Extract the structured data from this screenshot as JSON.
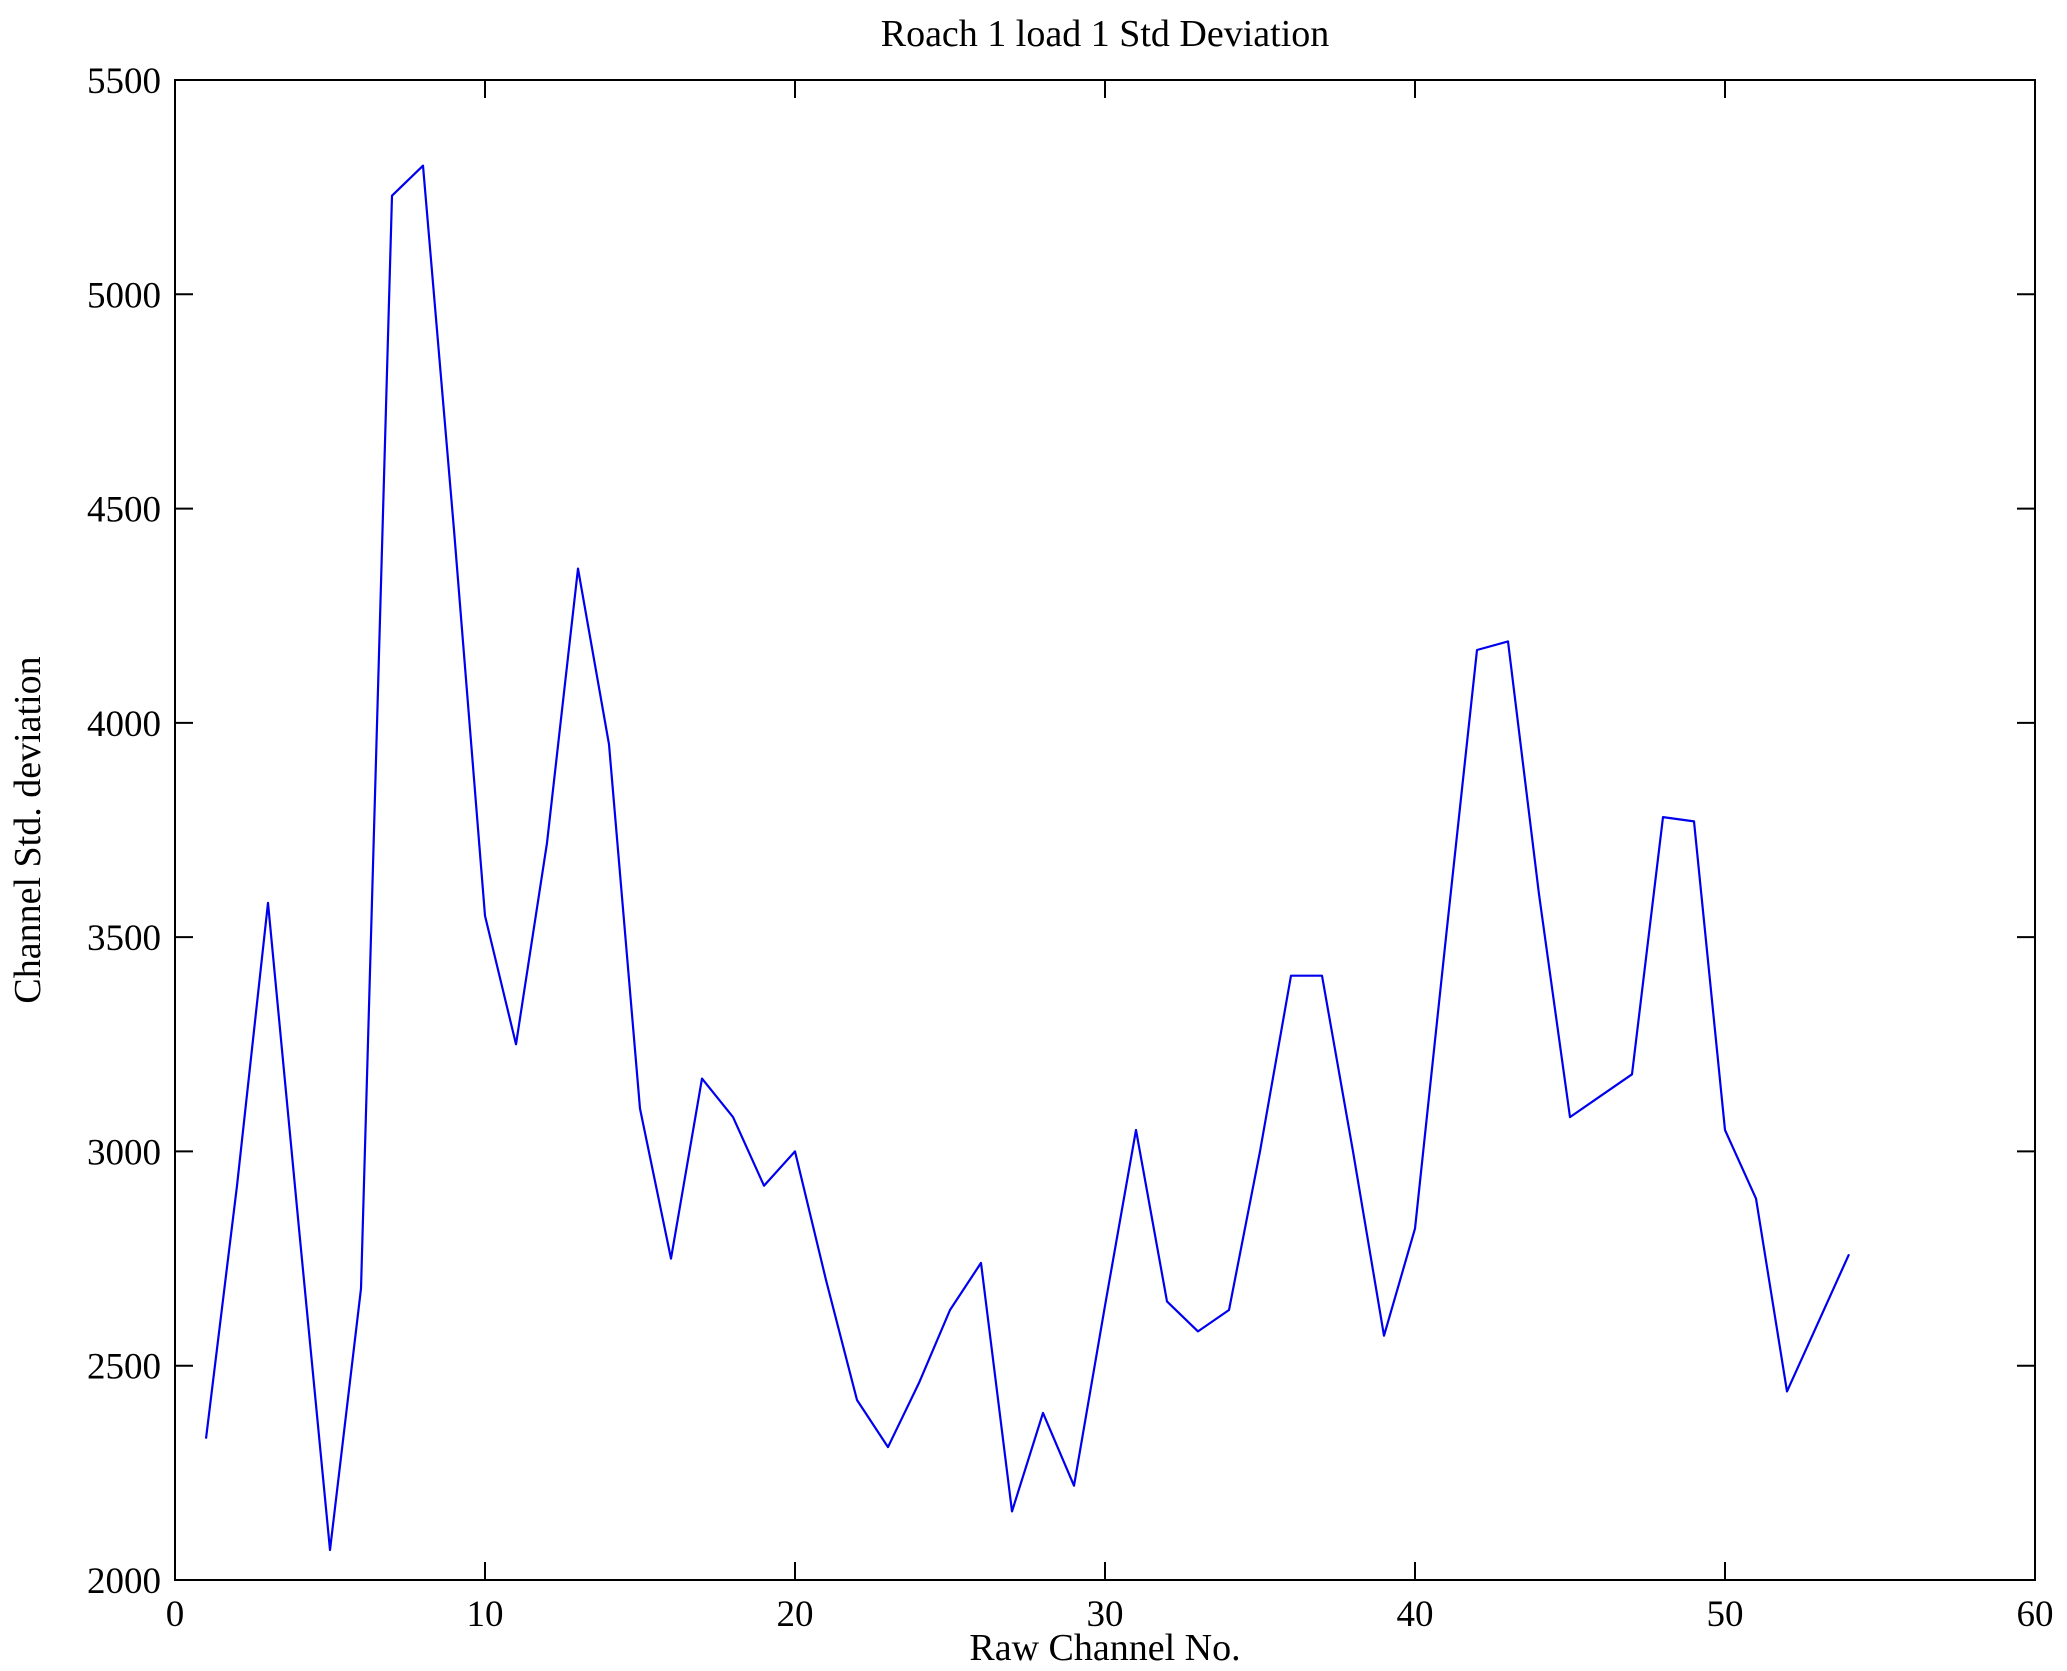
{
  "chart_data": {
    "type": "line",
    "title": "Roach 1 load 1 Std Deviation",
    "xlabel": "Raw Channel No.",
    "ylabel": "Channel Std. deviation",
    "xlim": [
      0,
      60
    ],
    "ylim": [
      2000,
      5500
    ],
    "xticks": [
      0,
      10,
      20,
      30,
      40,
      50,
      60
    ],
    "yticks": [
      2000,
      2500,
      3000,
      3500,
      4000,
      4500,
      5000,
      5500
    ],
    "grid": false,
    "legend": "none",
    "line_color": "#0000ee",
    "background_color": "#ffffff",
    "x": [
      1,
      2,
      3,
      4,
      5,
      6,
      7,
      8,
      9,
      10,
      11,
      12,
      13,
      14,
      15,
      16,
      17,
      18,
      19,
      20,
      21,
      22,
      23,
      24,
      25,
      26,
      27,
      28,
      29,
      30,
      31,
      32,
      33,
      34,
      35,
      36,
      37,
      38,
      39,
      40,
      41,
      42,
      43,
      44,
      45,
      46,
      47,
      48,
      49,
      50,
      51,
      52,
      53,
      54
    ],
    "y": [
      2330,
      2920,
      3580,
      2820,
      2070,
      2680,
      5230,
      5300,
      4450,
      3550,
      3250,
      3720,
      4360,
      3950,
      3100,
      2750,
      3170,
      3080,
      2920,
      3000,
      2700,
      2420,
      2310,
      2460,
      2630,
      2740,
      2160,
      2390,
      2220,
      2640,
      3050,
      2650,
      2580,
      2630,
      3000,
      3410,
      3410,
      3000,
      2570,
      2820,
      3500,
      4170,
      4190,
      3600,
      3080,
      3130,
      3180,
      3780,
      3770,
      3050,
      2890,
      2440,
      2600,
      2760
    ]
  }
}
